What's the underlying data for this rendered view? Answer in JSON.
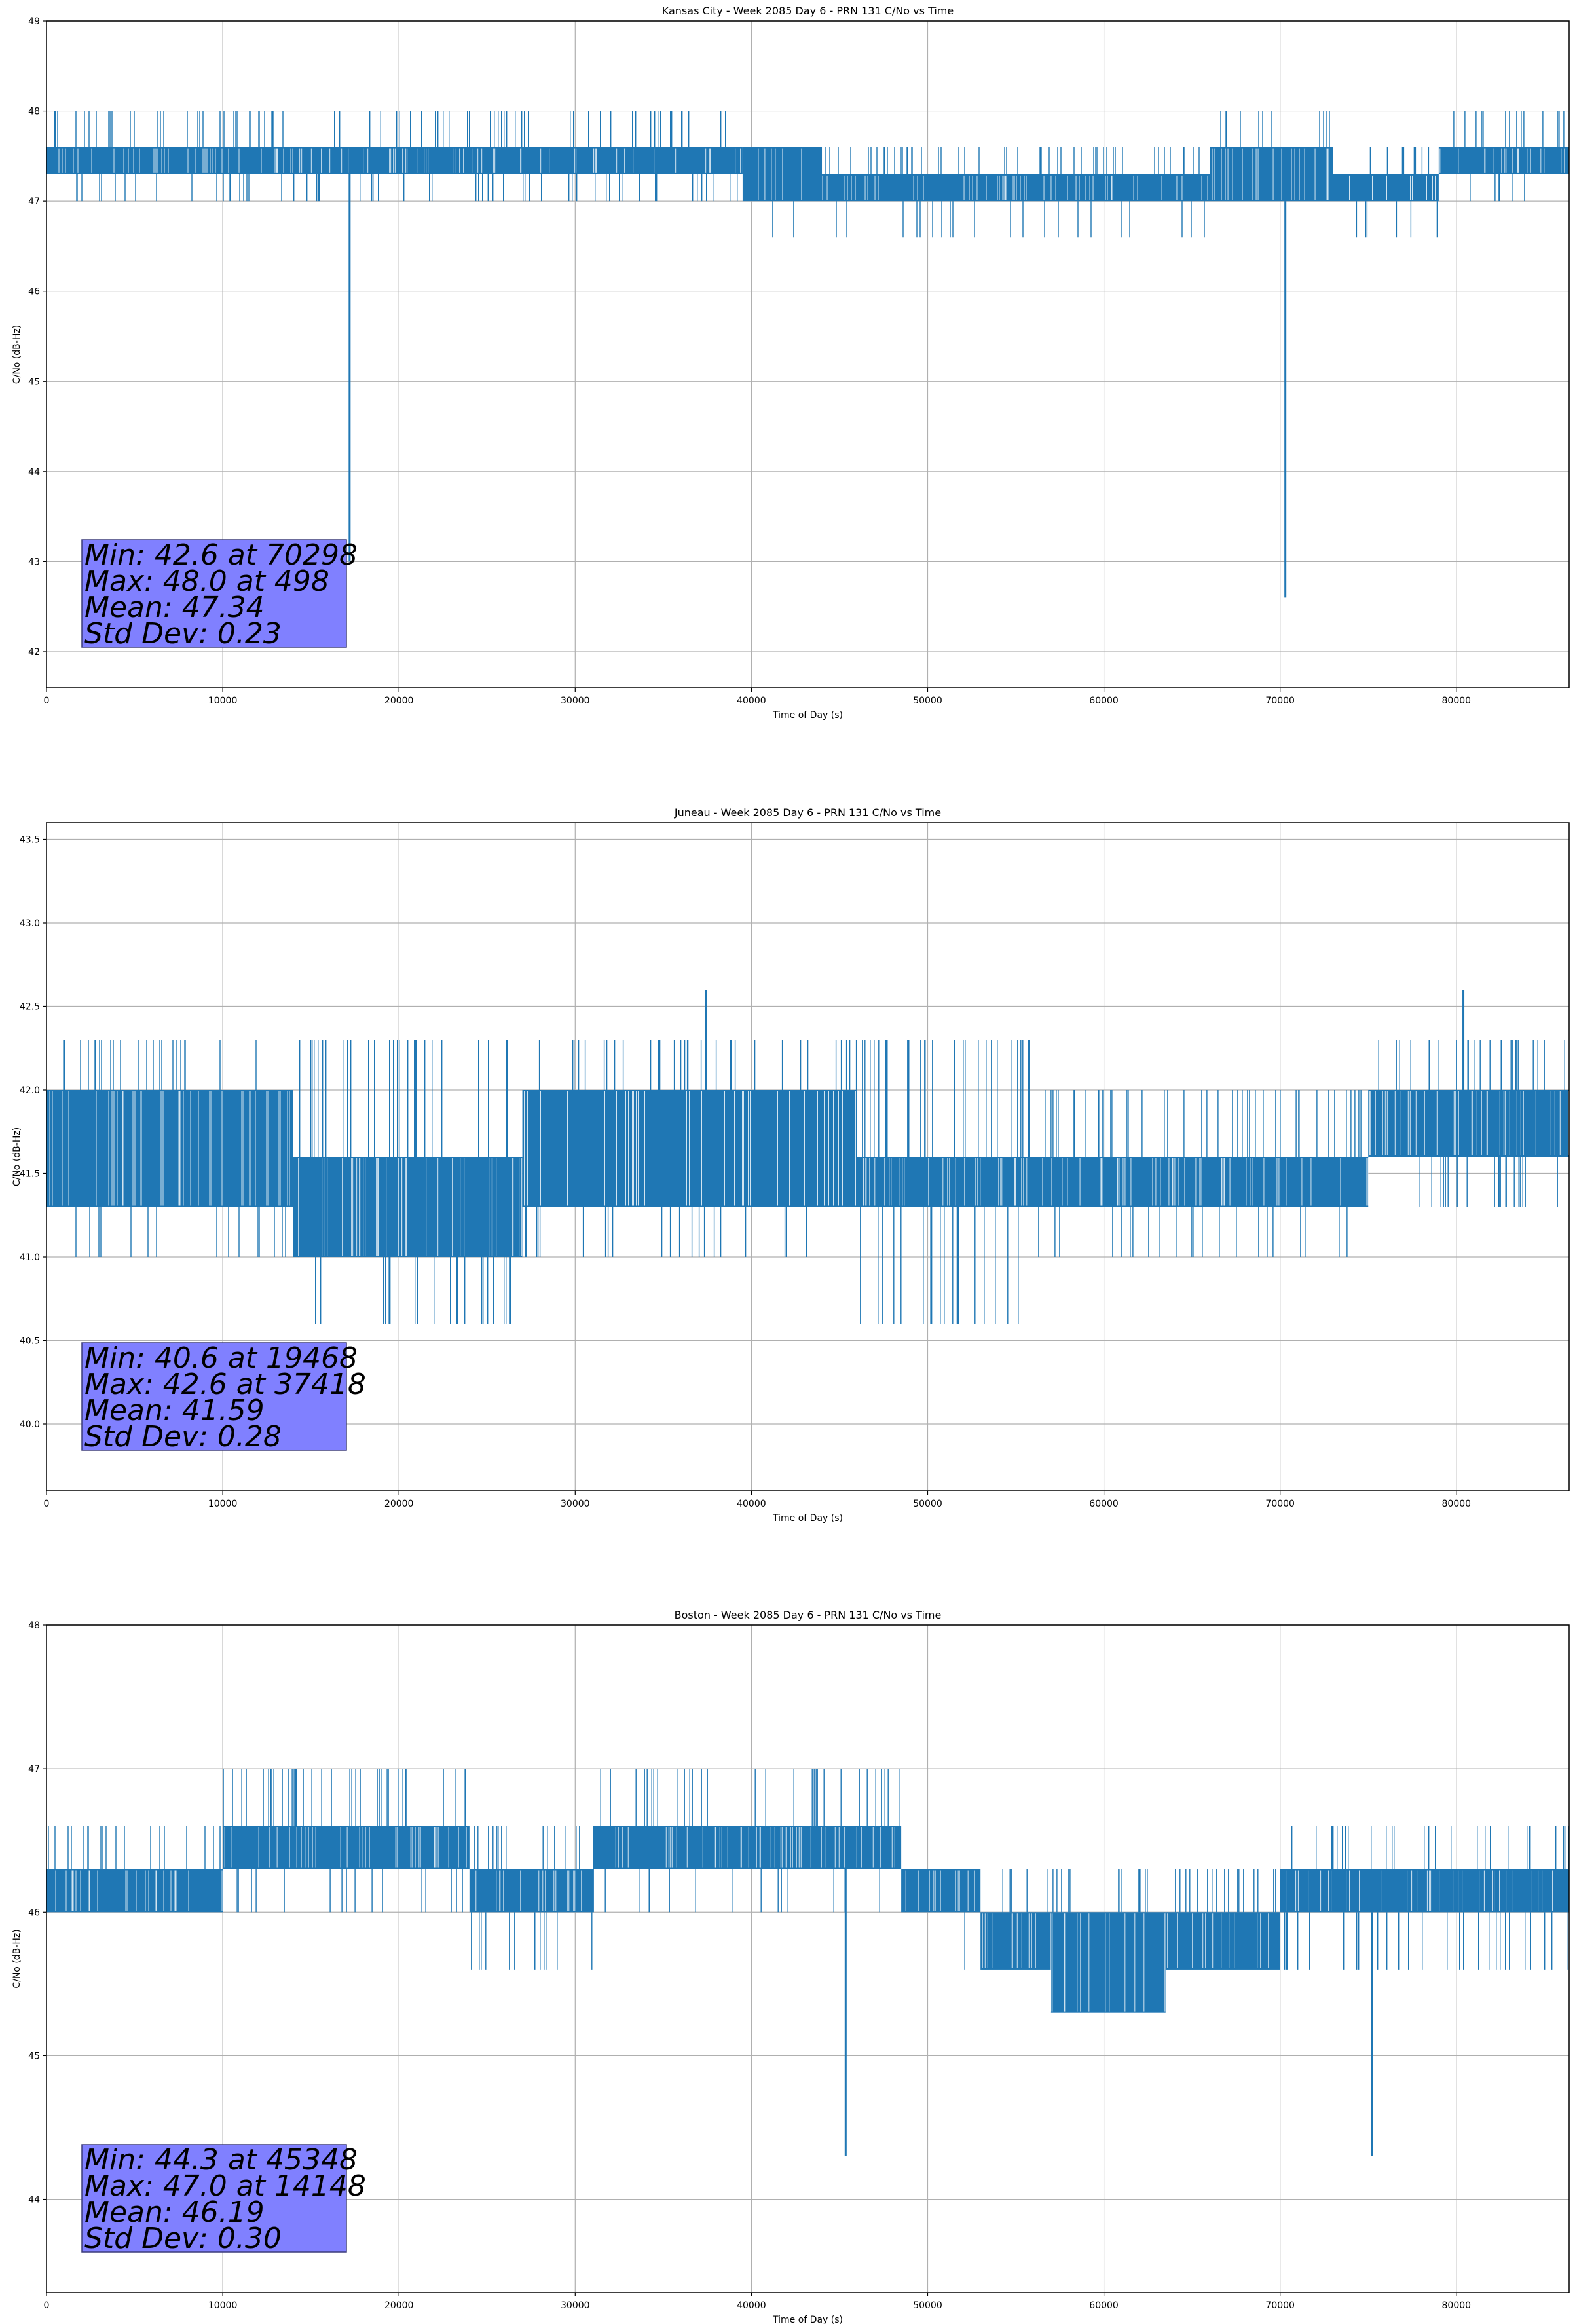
{
  "colors": {
    "series": "#1f77b4",
    "grid": "#b0b0b0",
    "stats_box": "#8080ff",
    "axes": "#000000"
  },
  "chart_data": [
    {
      "type": "line",
      "title": "Kansas City - Week 2085 Day 6 - PRN 131 C/No vs Time",
      "xlabel": "Time of Day (s)",
      "ylabel": "C/No (dB-Hz)",
      "xlim": [
        0,
        86400
      ],
      "ylim": [
        41.6,
        49.0
      ],
      "xticks": [
        0,
        10000,
        20000,
        30000,
        40000,
        50000,
        60000,
        70000,
        80000
      ],
      "yticks": [
        42,
        43,
        44,
        45,
        46,
        47,
        48,
        49
      ],
      "grid": true,
      "series": [
        {
          "levels_by_segment": [
            {
              "x": [
                0,
                14000
              ],
              "lo": 47.3,
              "hi": 47.6,
              "spikes_up": 48.0,
              "spikes_down": 47.0
            },
            {
              "x": [
                14000,
                39500
              ],
              "lo": 47.3,
              "hi": 47.6,
              "spikes_up": 48.0,
              "spikes_down": 47.0
            },
            {
              "x": [
                39500,
                44000
              ],
              "lo": 47.0,
              "hi": 47.6,
              "spikes_up": 47.6,
              "spikes_down": 46.6
            },
            {
              "x": [
                44000,
                66000
              ],
              "lo": 47.0,
              "hi": 47.3,
              "spikes_up": 47.6,
              "spikes_down": 46.6
            },
            {
              "x": [
                66000,
                73000
              ],
              "lo": 47.0,
              "hi": 47.6,
              "spikes_up": 48.0,
              "spikes_down": 47.0
            },
            {
              "x": [
                73000,
                79000
              ],
              "lo": 47.0,
              "hi": 47.3,
              "spikes_up": 47.6,
              "spikes_down": 46.6
            },
            {
              "x": [
                79000,
                86400
              ],
              "lo": 47.3,
              "hi": 47.6,
              "spikes_up": 48.0,
              "spikes_down": 47.0
            }
          ],
          "extreme_points": [
            {
              "x": 17200,
              "y": 43.0
            },
            {
              "x": 70298,
              "y": 42.6
            },
            {
              "x": 498,
              "y": 48.0
            }
          ]
        }
      ],
      "stats": [
        "Min: 42.6 at 70298",
        "Max: 48.0 at 498",
        "Mean: 47.34",
        "Std Dev: 0.23"
      ]
    },
    {
      "type": "line",
      "title": "Juneau - Week 2085 Day 6 - PRN 131 C/No vs Time",
      "xlabel": "Time of Day (s)",
      "ylabel": "C/No (dB-Hz)",
      "xlim": [
        0,
        86400
      ],
      "ylim": [
        39.6,
        43.6
      ],
      "xticks": [
        0,
        10000,
        20000,
        30000,
        40000,
        50000,
        60000,
        70000,
        80000
      ],
      "yticks": [
        40.0,
        40.5,
        41.0,
        41.5,
        42.0,
        42.5,
        43.0,
        43.5
      ],
      "grid": true,
      "series": [
        {
          "levels_by_segment": [
            {
              "x": [
                0,
                14000
              ],
              "lo": 41.3,
              "hi": 42.0,
              "spikes_up": 42.3,
              "spikes_down": 41.0
            },
            {
              "x": [
                14000,
                27000
              ],
              "lo": 41.0,
              "hi": 41.6,
              "spikes_up": 42.3,
              "spikes_down": 40.6
            },
            {
              "x": [
                27000,
                46000
              ],
              "lo": 41.3,
              "hi": 42.0,
              "spikes_up": 42.3,
              "spikes_down": 41.0
            },
            {
              "x": [
                46000,
                56000
              ],
              "lo": 41.3,
              "hi": 41.6,
              "spikes_up": 42.3,
              "spikes_down": 40.6
            },
            {
              "x": [
                56000,
                75000
              ],
              "lo": 41.3,
              "hi": 41.6,
              "spikes_up": 42.0,
              "spikes_down": 41.0
            },
            {
              "x": [
                75000,
                86400
              ],
              "lo": 41.6,
              "hi": 42.0,
              "spikes_up": 42.3,
              "spikes_down": 41.3
            }
          ],
          "extreme_points": [
            {
              "x": 19468,
              "y": 40.6
            },
            {
              "x": 23300,
              "y": 40.6
            },
            {
              "x": 26300,
              "y": 40.6
            },
            {
              "x": 50200,
              "y": 40.6
            },
            {
              "x": 51700,
              "y": 40.6
            },
            {
              "x": 37418,
              "y": 42.6
            },
            {
              "x": 80400,
              "y": 42.6
            },
            {
              "x": 1000,
              "y": 42.3
            }
          ]
        }
      ],
      "stats": [
        "Min: 40.6 at 19468",
        "Max: 42.6 at 37418",
        "Mean: 41.59",
        "Std Dev: 0.28"
      ]
    },
    {
      "type": "line",
      "title": "Boston - Week 2085 Day 6 - PRN 131 C/No vs Time",
      "xlabel": "Time of Day (s)",
      "ylabel": "C/No (dB-Hz)",
      "xlim": [
        0,
        86400
      ],
      "ylim": [
        43.35,
        48.0
      ],
      "xticks": [
        0,
        10000,
        20000,
        30000,
        40000,
        50000,
        60000,
        70000,
        80000
      ],
      "yticks": [
        44,
        45,
        46,
        47,
        48
      ],
      "grid": true,
      "series": [
        {
          "levels_by_segment": [
            {
              "x": [
                0,
                10000
              ],
              "lo": 46.0,
              "hi": 46.3,
              "spikes_up": 46.6,
              "spikes_down": 46.0
            },
            {
              "x": [
                10000,
                24000
              ],
              "lo": 46.3,
              "hi": 46.6,
              "spikes_up": 47.0,
              "spikes_down": 46.0
            },
            {
              "x": [
                24000,
                31000
              ],
              "lo": 46.0,
              "hi": 46.3,
              "spikes_up": 46.6,
              "spikes_down": 45.6
            },
            {
              "x": [
                31000,
                48500
              ],
              "lo": 46.3,
              "hi": 46.6,
              "spikes_up": 47.0,
              "spikes_down": 46.0
            },
            {
              "x": [
                48500,
                53000
              ],
              "lo": 46.0,
              "hi": 46.3,
              "spikes_up": 46.3,
              "spikes_down": 45.6
            },
            {
              "x": [
                53000,
                57000
              ],
              "lo": 45.6,
              "hi": 46.0,
              "spikes_up": 46.3,
              "spikes_down": 45.6
            },
            {
              "x": [
                57000,
                63500
              ],
              "lo": 45.3,
              "hi": 46.0,
              "spikes_up": 46.3,
              "spikes_down": 45.3
            },
            {
              "x": [
                63500,
                70000
              ],
              "lo": 45.6,
              "hi": 46.0,
              "spikes_up": 46.3,
              "spikes_down": 45.6
            },
            {
              "x": [
                70000,
                86400
              ],
              "lo": 46.0,
              "hi": 46.3,
              "spikes_up": 46.6,
              "spikes_down": 45.6
            }
          ],
          "extreme_points": [
            {
              "x": 45348,
              "y": 44.3
            },
            {
              "x": 75200,
              "y": 44.3
            },
            {
              "x": 14148,
              "y": 47.0
            }
          ]
        }
      ],
      "stats": [
        "Min: 44.3 at 45348",
        "Max: 47.0 at 14148",
        "Mean: 46.19",
        "Std Dev: 0.30"
      ]
    }
  ]
}
